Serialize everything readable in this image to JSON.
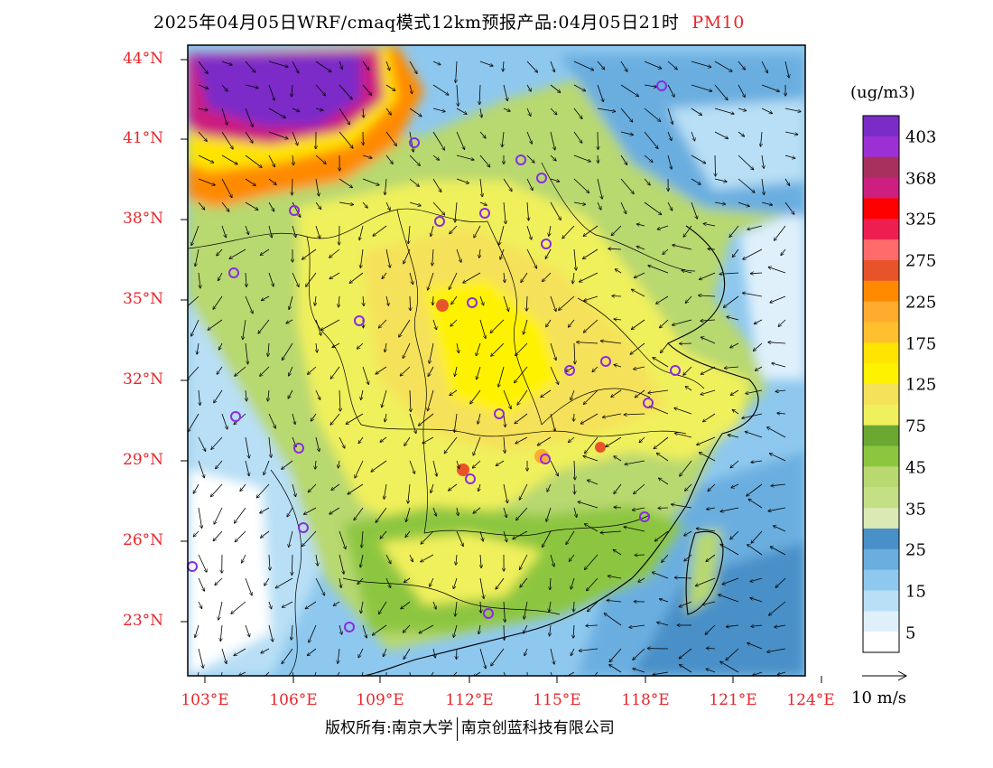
{
  "title": "2025年04月05日WRF/cmaq模式12km预报产品:04月05日21时",
  "pollutant": "PM10",
  "lat_labels": [
    "44°N",
    "41°N",
    "38°N",
    "35°N",
    "32°N",
    "29°N",
    "26°N",
    "23°N"
  ],
  "lon_labels": [
    "103°E",
    "106°E",
    "109°E",
    "112°E",
    "115°E",
    "118°E",
    "121°E",
    "124°E"
  ],
  "colorbar": {
    "unit": "(ug/m3)",
    "labels": [
      "403",
      "368",
      "325",
      "275",
      "225",
      "175",
      "125",
      "75",
      "45",
      "35",
      "25",
      "15",
      "5"
    ],
    "colors": [
      "#7b2cc8",
      "#9b30d4",
      "#a8305e",
      "#cc1f7f",
      "#ff0000",
      "#ee1f4f",
      "#ff6a6a",
      "#e8542a",
      "#ff8a00",
      "#ffab2e",
      "#ffbf2e",
      "#ffe400",
      "#fff200",
      "#f5e15a",
      "#f0f05c",
      "#6aa832",
      "#8cc63f",
      "#b8d870",
      "#c5df84",
      "#dbe9b4",
      "#4a90c8",
      "#6aaee0",
      "#8ec8ee",
      "#b8dff5",
      "#dff0fb",
      "#ffffff"
    ]
  },
  "wind_reference": "10 m/s",
  "copyright": {
    "left": "版权所有:南京大学",
    "right": "南京创蓝科技有限公司"
  },
  "map_colors": {
    "sea": "#8ec8ee",
    "land_base": "#b8d870",
    "high_pollution": "#f5e15a",
    "dust_core": "#7b2cc8",
    "station_marker": "#8a2be2"
  }
}
